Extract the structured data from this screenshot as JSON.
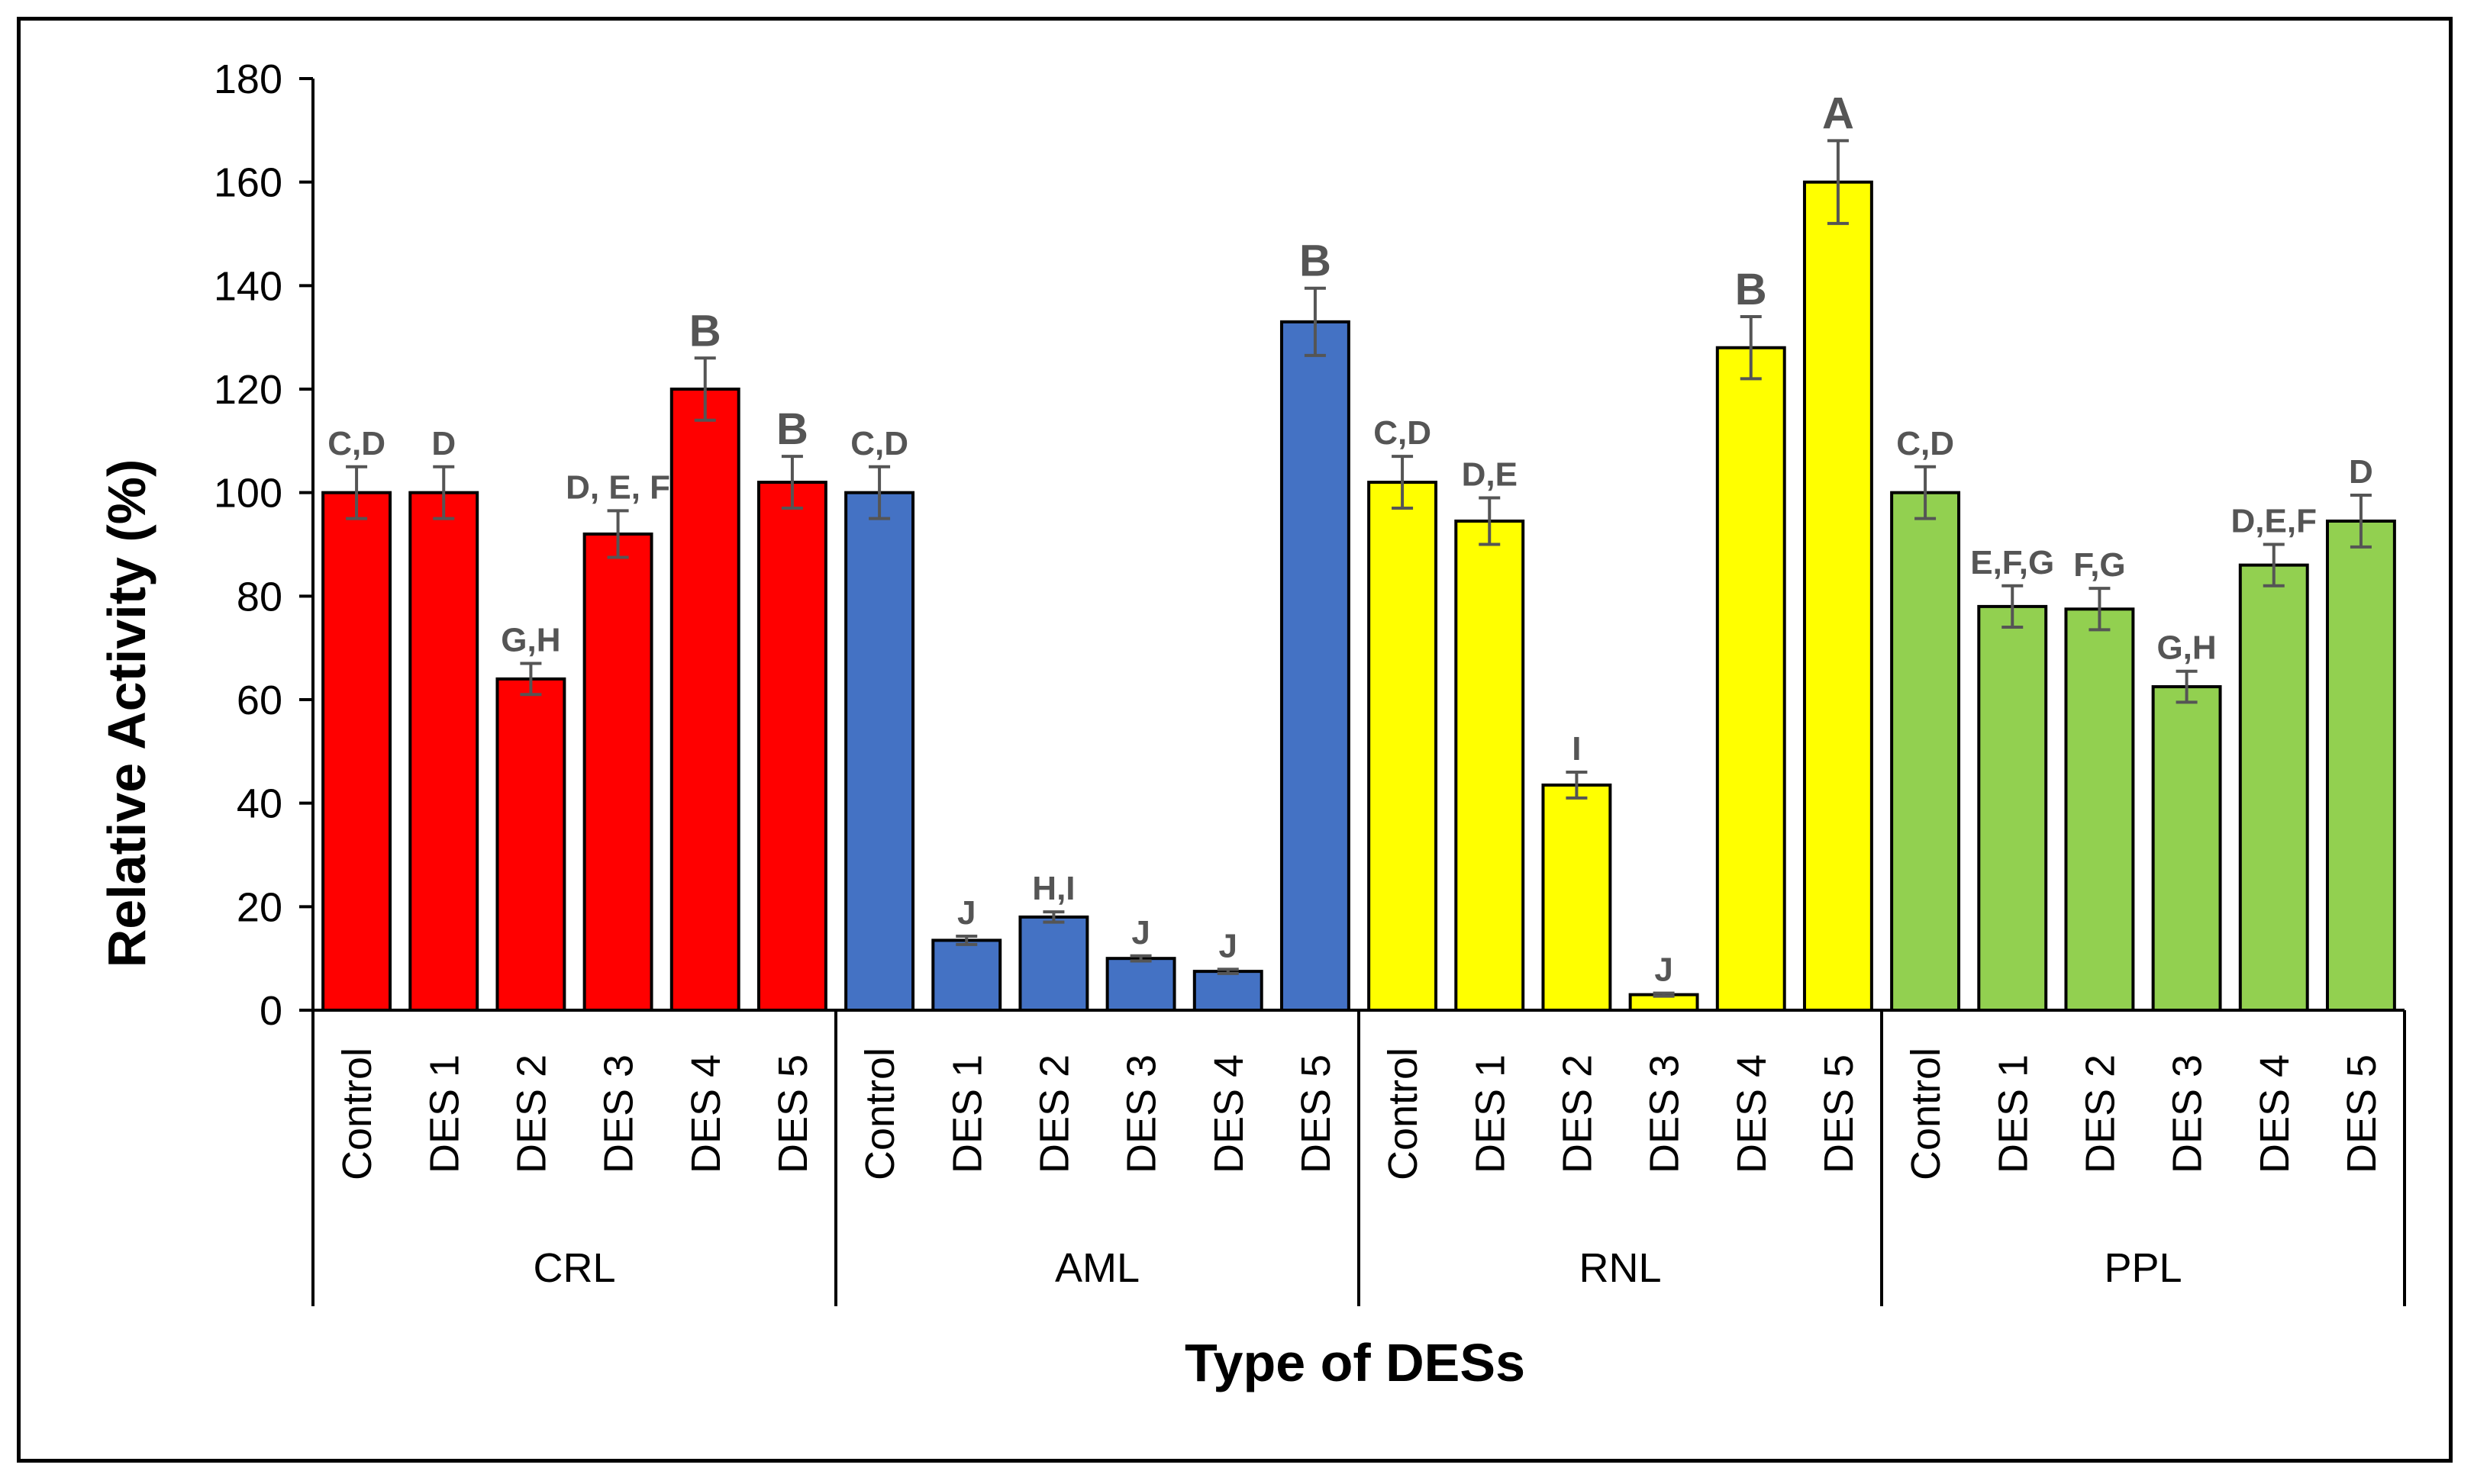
{
  "chart_data": {
    "type": "bar",
    "title": "",
    "xlabel": "Type of DESs",
    "ylabel": "Relative Activity (%)",
    "ylim": [
      0,
      180
    ],
    "yticks": [
      0,
      20,
      40,
      60,
      80,
      100,
      120,
      140,
      160,
      180
    ],
    "grid": false,
    "colors": {
      "CRL": "#ff0000",
      "AML": "#4472c4",
      "RNL": "#ffff00",
      "PPL": "#92d050",
      "error_bar": "#555555"
    },
    "groups": [
      {
        "name": "CRL",
        "categories": [
          "Control",
          "DES 1",
          "DES 2",
          "DES 3",
          "DES 4",
          "DES 5"
        ],
        "values": [
          100,
          100,
          64,
          92,
          120,
          102
        ],
        "errors": [
          5,
          5,
          3,
          4.5,
          6,
          5
        ],
        "labels": [
          "C,D",
          "D",
          "G,H",
          "D, E, F",
          "B",
          "B"
        ]
      },
      {
        "name": "AML",
        "categories": [
          "Control",
          "DES 1",
          "DES 2",
          "DES 3",
          "DES 4",
          "DES 5"
        ],
        "values": [
          100,
          13.5,
          18,
          10,
          7.5,
          133
        ],
        "errors": [
          5,
          0.8,
          1,
          0.5,
          0.4,
          6.5
        ],
        "labels": [
          "C,D",
          "J",
          "H,I",
          "J",
          "J",
          "B"
        ]
      },
      {
        "name": "RNL",
        "categories": [
          "Control",
          "DES 1",
          "DES 2",
          "DES 3",
          "DES 4",
          "DES 5"
        ],
        "values": [
          102,
          94.5,
          43.5,
          3,
          128,
          160
        ],
        "errors": [
          5,
          4.5,
          2.5,
          0.3,
          6,
          8
        ],
        "labels": [
          "C,D",
          "D,E",
          "I",
          "J",
          "B",
          "A"
        ]
      },
      {
        "name": "PPL",
        "categories": [
          "Control",
          "DES 1",
          "DES 2",
          "DES 3",
          "DES 4",
          "DES 5"
        ],
        "values": [
          100,
          78,
          77.5,
          62.5,
          86,
          94.5
        ],
        "errors": [
          5,
          4,
          4,
          3,
          4,
          5
        ],
        "labels": [
          "C,D",
          "E,F,G",
          "F,G",
          "G,H",
          "D,E,F",
          "D"
        ]
      }
    ]
  }
}
